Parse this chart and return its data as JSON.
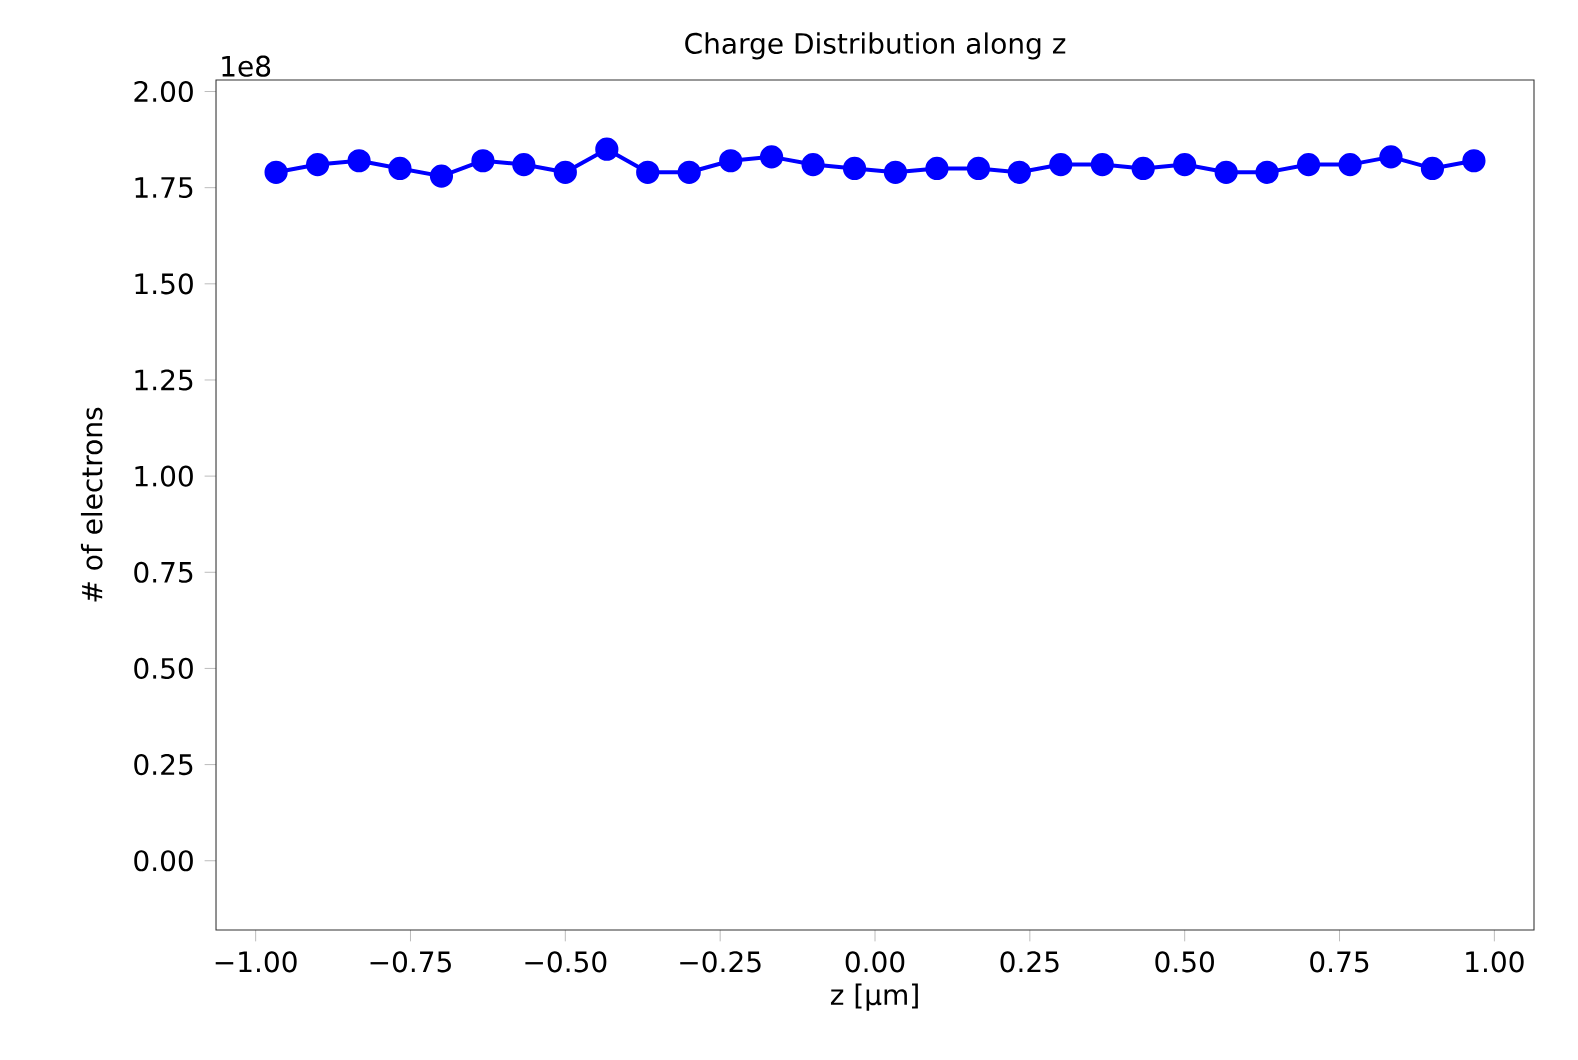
{
  "chart_data": {
    "type": "line",
    "title": "Charge Distribution along z",
    "xlabel": "z [µm]",
    "ylabel": "# of electrons",
    "annotations": [
      "1e8"
    ],
    "x": [
      -0.967,
      -0.9,
      -0.833,
      -0.767,
      -0.7,
      -0.633,
      -0.567,
      -0.5,
      -0.433,
      -0.367,
      -0.3,
      -0.233,
      -0.167,
      -0.1,
      -0.033,
      0.033,
      0.1,
      0.167,
      0.233,
      0.3,
      0.367,
      0.433,
      0.5,
      0.567,
      0.633,
      0.7,
      0.767,
      0.833,
      0.9,
      0.967
    ],
    "series": [
      {
        "color": "#0000ff",
        "values": [
          1.79,
          1.81,
          1.82,
          1.8,
          1.78,
          1.82,
          1.81,
          1.79,
          1.85,
          1.79,
          1.79,
          1.82,
          1.83,
          1.81,
          1.8,
          1.79,
          1.8,
          1.8,
          1.79,
          1.81,
          1.81,
          1.8,
          1.81,
          1.79,
          1.79,
          1.81,
          1.81,
          1.83,
          1.8,
          1.82
        ]
      }
    ],
    "marker": "circle",
    "line_style": "solid",
    "xlim": [
      -1.064,
      1.064
    ],
    "ylim": [
      -0.18,
      2.03
    ],
    "xticks": [
      {
        "value": -1,
        "label": "−1.00"
      },
      {
        "value": -0.75,
        "label": "−0.75"
      },
      {
        "value": -0.5,
        "label": "−0.50"
      },
      {
        "value": -0.25,
        "label": "−0.25"
      },
      {
        "value": 0,
        "label": "0.00"
      },
      {
        "value": 0.25,
        "label": "0.25"
      },
      {
        "value": 0.5,
        "label": "0.50"
      },
      {
        "value": 0.75,
        "label": "0.75"
      },
      {
        "value": 1,
        "label": "1.00"
      }
    ],
    "yticks": [
      {
        "value": 0,
        "label": "0.00"
      },
      {
        "value": 0.25,
        "label": "0.25"
      },
      {
        "value": 0.5,
        "label": "0.50"
      },
      {
        "value": 0.75,
        "label": "0.75"
      },
      {
        "value": 1,
        "label": "1.00"
      },
      {
        "value": 1.25,
        "label": "1.25"
      },
      {
        "value": 1.5,
        "label": "1.50"
      },
      {
        "value": 1.75,
        "label": "1.75"
      },
      {
        "value": 2,
        "label": "2.00"
      }
    ]
  }
}
